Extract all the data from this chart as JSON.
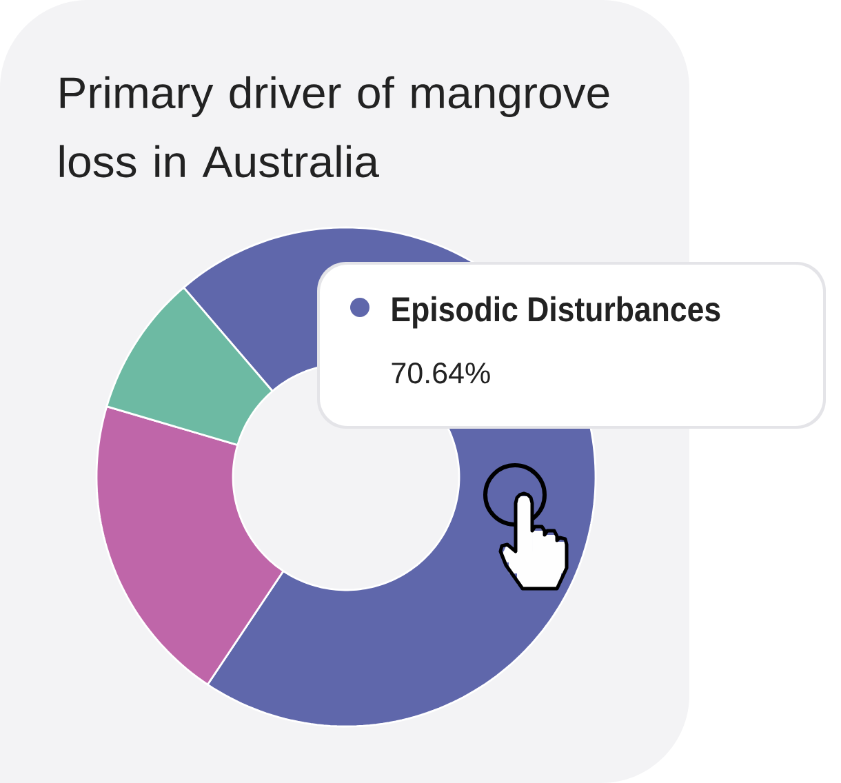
{
  "chart_data": {
    "type": "donut",
    "title": "Primary driver of mangrove loss in Australia",
    "categories": [
      "Episodic Disturbances",
      null,
      null
    ],
    "values": [
      70.64,
      20.2,
      9.16
    ],
    "colors": [
      "#5f67ab",
      "#bf66a9",
      "#6dbaa3"
    ],
    "value_labels": [
      "70.64%",
      null,
      null
    ]
  }
}
